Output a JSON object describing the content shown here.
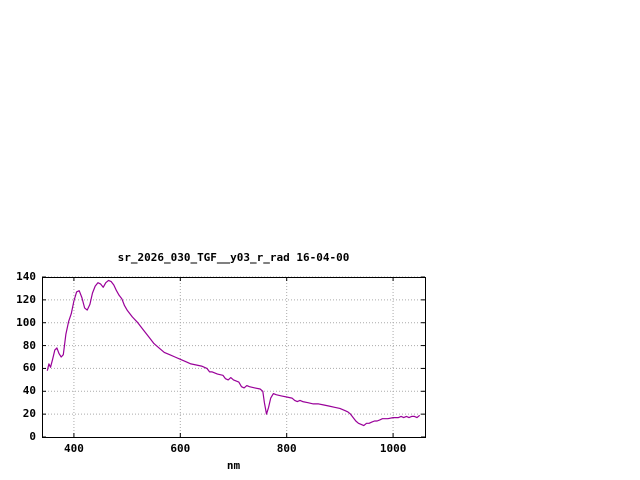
{
  "page": {
    "background_color": "#ffffff",
    "text_color": "#000000"
  },
  "chart_data": {
    "type": "line",
    "title": "sr_2026_030_TGF__y03_r_rad 16-04-00",
    "xlabel": "nm",
    "ylabel": "",
    "xlim": [
      340,
      1060
    ],
    "ylim": [
      0,
      140
    ],
    "xticks": [
      400,
      600,
      800,
      1000
    ],
    "yticks": [
      0,
      20,
      40,
      60,
      80,
      100,
      120,
      140
    ],
    "grid": true,
    "legend": "none",
    "line_color": "#990099",
    "grid_color": "#aaaaaa",
    "border_color": "#000000",
    "series": [
      {
        "x": [
          350,
          353,
          356,
          360,
          364,
          368,
          372,
          376,
          380,
          385,
          390,
          395,
          400,
          405,
          410,
          415,
          420,
          425,
          430,
          435,
          440,
          445,
          450,
          455,
          460,
          465,
          470,
          475,
          480,
          485,
          490,
          495,
          500,
          510,
          520,
          530,
          540,
          550,
          560,
          570,
          580,
          590,
          600,
          610,
          620,
          630,
          640,
          650,
          655,
          660,
          670,
          680,
          685,
          690,
          695,
          700,
          710,
          715,
          720,
          725,
          730,
          740,
          750,
          755,
          758,
          762,
          766,
          770,
          775,
          780,
          790,
          800,
          810,
          815,
          820,
          825,
          830,
          840,
          850,
          860,
          870,
          880,
          890,
          900,
          910,
          915,
          920,
          925,
          930,
          935,
          940,
          945,
          950,
          955,
          960,
          965,
          970,
          975,
          980,
          990,
          1000,
          1010,
          1015,
          1020,
          1025,
          1030,
          1035,
          1040,
          1045,
          1050
        ],
        "y": [
          58,
          64,
          61,
          68,
          76,
          78,
          73,
          70,
          72,
          90,
          101,
          108,
          119,
          127,
          128,
          122,
          113,
          111,
          116,
          126,
          132,
          135,
          134,
          131,
          135,
          137,
          136,
          133,
          128,
          124,
          121,
          115,
          111,
          105,
          100,
          94,
          88,
          82,
          78,
          74,
          72,
          70,
          68,
          66,
          64,
          63,
          62,
          60,
          57,
          57,
          55,
          54,
          51,
          50,
          52,
          50,
          48,
          44,
          43,
          45,
          44,
          43,
          42,
          40,
          30,
          20,
          26,
          34,
          38,
          37,
          36,
          35,
          34,
          32,
          31,
          32,
          31,
          30,
          29,
          29,
          28,
          27,
          26,
          25,
          23,
          22,
          20,
          17,
          14,
          12,
          11,
          10,
          12,
          12,
          13,
          14,
          14,
          15,
          16,
          16,
          17,
          17,
          18,
          17,
          18,
          17,
          18,
          18,
          17,
          19
        ]
      }
    ]
  }
}
